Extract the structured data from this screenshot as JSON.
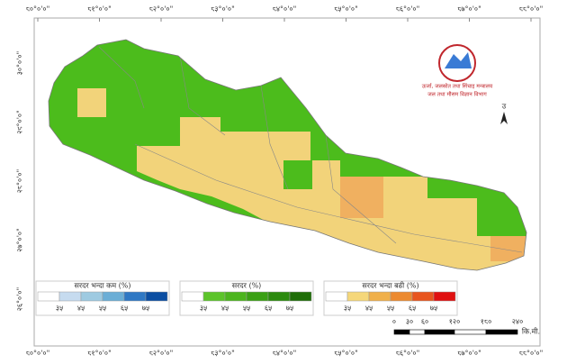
{
  "map": {
    "lon_labels": [
      "८०°०'०\"",
      "८१°०'०\"",
      "८२°०'०\"",
      "८३°०'०\"",
      "८४°०'०\"",
      "८५°०'०\"",
      "८६°०'०\"",
      "८७°०'०\"",
      "८८°०'०\""
    ],
    "lat_labels": [
      "३०°०'०\"",
      "२९°०'०\"",
      "२८°०'०\"",
      "२७°०'०\"",
      "२६°०'०\""
    ],
    "logo": {
      "line1": "ऊर्जा, जलस्रोत तथा सिंचाइ मन्त्रालय",
      "line2": "जल तथा मौसम विज्ञान विभाग"
    },
    "north": "उ",
    "legends": [
      {
        "title": "सरदर भन्दा कम (%)",
        "colors": [
          "#ffffff",
          "#c6dbef",
          "#9ecae1",
          "#6baed6",
          "#2f78c4",
          "#0b4ea2"
        ],
        "ticks": [
          "३५",
          "४५",
          "५५",
          "६५",
          "७५"
        ]
      },
      {
        "title": "सरदर (%)",
        "colors": [
          "#ffffff",
          "#5cc42a",
          "#4cb51e",
          "#3aa014",
          "#2b8a0e",
          "#1f6e08"
        ],
        "ticks": [
          "३५",
          "४५",
          "५५",
          "६५",
          "७५"
        ]
      },
      {
        "title": "सरदर भन्दा बढी (%)",
        "colors": [
          "#ffffff",
          "#f5d77a",
          "#f0b04a",
          "#ec8a30",
          "#e8551e",
          "#e01010"
        ],
        "ticks": [
          "३५",
          "४५",
          "५५",
          "६५",
          "७५"
        ]
      }
    ],
    "scale": {
      "ticks": [
        "०",
        "३०",
        "६०",
        "१२०",
        "१८०",
        "२४०"
      ],
      "unit": "कि.मी."
    }
  }
}
